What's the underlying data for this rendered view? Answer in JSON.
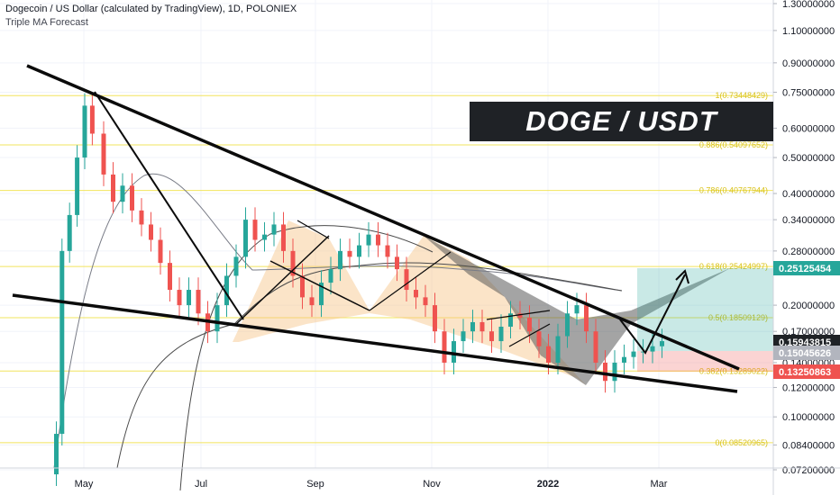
{
  "header": {
    "title": "Dogecoin / US Dollar (calculated by TradingView), 1D, POLONIEX",
    "indicator": "Triple MA Forecast"
  },
  "banner": "DOGE / USDT",
  "chart_data": {
    "type": "candlestick",
    "symbol": "Dogecoin / US Dollar",
    "interval": "1D",
    "exchange": "POLONIEX",
    "y_scale": "log",
    "ylim": [
      0.07,
      1.4
    ],
    "y_ticks": [
      "1.30000000",
      "1.10000000",
      "0.90000000",
      "0.75000000",
      "0.60000000",
      "0.50000000",
      "0.40000000",
      "0.34000000",
      "0.28000000",
      "0.20000000",
      "0.17000000",
      "0.14000000",
      "0.12000000",
      "0.10000000",
      "0.08400000",
      "0.07200000"
    ],
    "x_ticks": [
      "May",
      "Jul",
      "Sep",
      "Nov",
      "2022",
      "Mar"
    ],
    "price_badges": [
      {
        "value": "0.25125454",
        "color": "#26a69a"
      },
      {
        "value": "0.15943815",
        "color": "#1f2226"
      },
      {
        "value": "0.15045626",
        "color": "#b2b5be"
      },
      {
        "value": "0.13250863",
        "color": "#ef5350"
      }
    ],
    "fib_levels": [
      {
        "label": "1(0.73448429)",
        "value": 0.7345
      },
      {
        "label": "0.886(0.54097652)",
        "value": 0.541
      },
      {
        "label": "0.786(0.40767944)",
        "value": 0.4077
      },
      {
        "label": "0.618(0.25424997)",
        "value": 0.2542
      },
      {
        "label": "0.5(0.18509129)",
        "value": 0.1851
      },
      {
        "label": "0.382(0.13289022)",
        "value": 0.1329
      },
      {
        "label": "0(0.08520965)",
        "value": 0.0852
      }
    ],
    "price_series": {
      "t": [
        0,
        5,
        8,
        12,
        16,
        20,
        24,
        30,
        35,
        40,
        45,
        50,
        55,
        60,
        65,
        70,
        75,
        80,
        85,
        90,
        95,
        100,
        105,
        110,
        115,
        120,
        125,
        130,
        135,
        140,
        145,
        150,
        155,
        160,
        165,
        170,
        175,
        180,
        185,
        190,
        195,
        200,
        205,
        210,
        215,
        220,
        225,
        230,
        235,
        240,
        245,
        250,
        255,
        260,
        265,
        270,
        275,
        280,
        285,
        290,
        295,
        300,
        305,
        310,
        315,
        320,
        325
      ],
      "close": [
        0.07,
        0.09,
        0.28,
        0.35,
        0.5,
        0.69,
        0.58,
        0.45,
        0.38,
        0.42,
        0.36,
        0.33,
        0.3,
        0.26,
        0.22,
        0.2,
        0.22,
        0.19,
        0.17,
        0.2,
        0.24,
        0.27,
        0.34,
        0.3,
        0.31,
        0.33,
        0.28,
        0.24,
        0.21,
        0.2,
        0.23,
        0.25,
        0.28,
        0.27,
        0.29,
        0.31,
        0.29,
        0.27,
        0.25,
        0.22,
        0.21,
        0.2,
        0.17,
        0.14,
        0.16,
        0.17,
        0.18,
        0.17,
        0.16,
        0.175,
        0.19,
        0.185,
        0.17,
        0.155,
        0.14,
        0.165,
        0.19,
        0.2,
        0.17,
        0.14,
        0.125,
        0.14,
        0.145,
        0.15,
        0.15,
        0.155,
        0.16
      ]
    }
  }
}
